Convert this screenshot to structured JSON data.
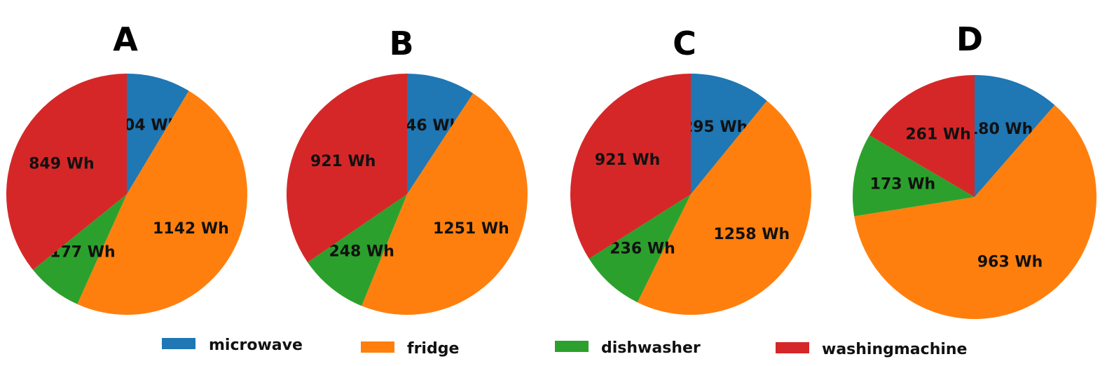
{
  "chart_data": [
    {
      "type": "pie",
      "title": "A",
      "categories": [
        "microwave",
        "fridge",
        "dishwasher",
        "washingmachine"
      ],
      "values": [
        204,
        1142,
        177,
        849
      ],
      "labels": [
        "204 Wh",
        "1142 Wh",
        "177 Wh",
        "849 Wh"
      ],
      "start_angle": 90,
      "direction": "clockwise"
    },
    {
      "type": "pie",
      "title": "B",
      "categories": [
        "microwave",
        "fridge",
        "dishwasher",
        "washingmachine"
      ],
      "values": [
        246,
        1251,
        248,
        921
      ],
      "labels": [
        "246 Wh",
        "1251 Wh",
        "248 Wh",
        "921 Wh"
      ],
      "start_angle": 90,
      "direction": "clockwise"
    },
    {
      "type": "pie",
      "title": "C",
      "categories": [
        "microwave",
        "fridge",
        "dishwasher",
        "washingmachine"
      ],
      "values": [
        295,
        1258,
        236,
        921
      ],
      "labels": [
        "295 Wh",
        "1258 Wh",
        "236 Wh",
        "921 Wh"
      ],
      "start_angle": 90,
      "direction": "clockwise"
    },
    {
      "type": "pie",
      "title": "D",
      "categories": [
        "microwave",
        "fridge",
        "dishwasher",
        "washingmachine"
      ],
      "values": [
        180,
        963,
        173,
        261
      ],
      "labels": [
        "180 Wh",
        "963 Wh",
        "173 Wh",
        "261 Wh"
      ],
      "start_angle": 90,
      "direction": "clockwise"
    }
  ],
  "legend": {
    "placement": "bottom",
    "items": [
      {
        "label": "microwave",
        "color": "#1f77b4"
      },
      {
        "label": "fridge",
        "color": "#ff7f0e"
      },
      {
        "label": "dishwasher",
        "color": "#2ca02c"
      },
      {
        "label": "washingmachine",
        "color": "#d62728"
      }
    ]
  }
}
